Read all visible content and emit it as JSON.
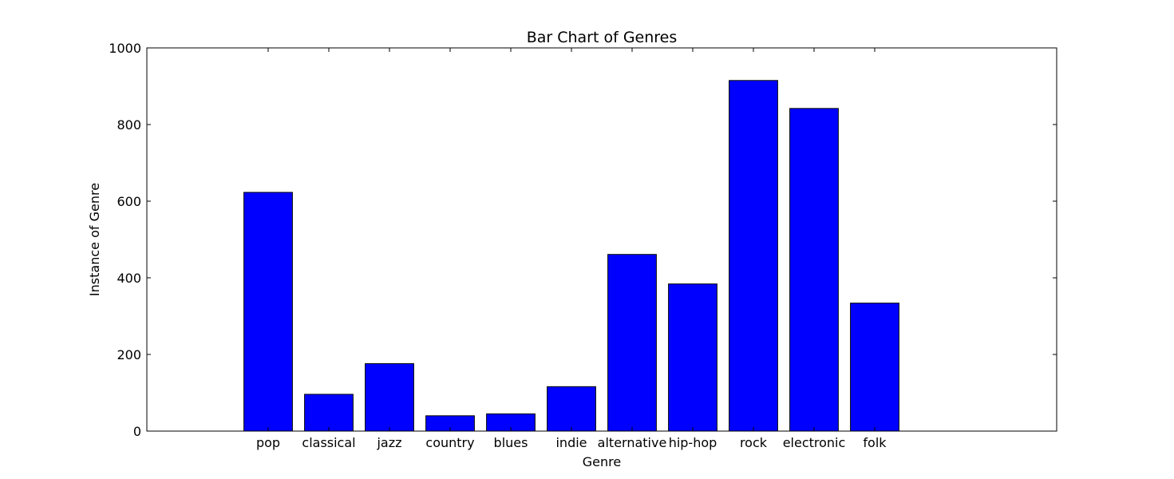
{
  "chart_data": {
    "type": "bar",
    "title": "Bar Chart of Genres",
    "xlabel": "Genre",
    "ylabel": "Instance of Genre",
    "categories": [
      "pop",
      "classical",
      "jazz",
      "country",
      "blues",
      "indie",
      "alternative",
      "hip-hop",
      "rock",
      "electronic",
      "folk"
    ],
    "values": [
      623,
      96,
      176,
      40,
      45,
      116,
      461,
      384,
      915,
      842,
      334
    ],
    "ylim": [
      0,
      1000
    ],
    "yticks": [
      0,
      200,
      400,
      600,
      800,
      1000
    ],
    "xlim": [
      -2,
      13
    ],
    "bar_color": "#0000ff",
    "bar_edge_color": "#000000",
    "grid": false,
    "legend": "none"
  }
}
